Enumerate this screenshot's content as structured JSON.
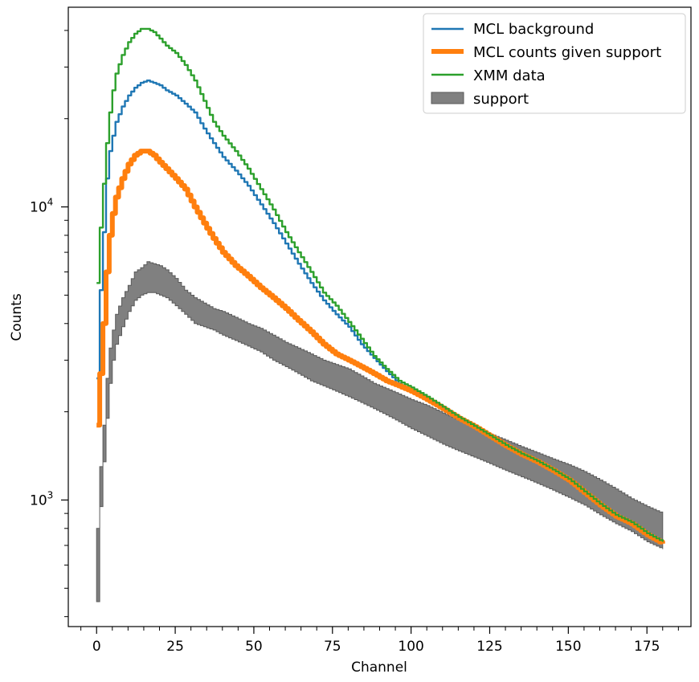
{
  "chart_data": {
    "type": "line",
    "title": "",
    "xlabel": "Channel",
    "ylabel": "Counts",
    "xlim": [
      -9,
      189
    ],
    "ylim": [
      370,
      48000
    ],
    "yscale": "log",
    "grid": false,
    "legend_position": "top-right",
    "x_ticks": [
      0,
      25,
      50,
      75,
      100,
      125,
      150,
      175
    ],
    "x_tick_labels": [
      "0",
      "25",
      "50",
      "75",
      "100",
      "125",
      "150",
      "175"
    ],
    "y_ticks": [
      1000,
      10000
    ],
    "y_tick_labels": [
      {
        "base": "10",
        "exp": "3"
      },
      {
        "base": "10",
        "exp": "4"
      }
    ],
    "series": [
      {
        "name": "MCL background",
        "color": "#1f77b4",
        "style": "step",
        "x": [
          0,
          1,
          2,
          3,
          4,
          5,
          6,
          8,
          10,
          12,
          14,
          16,
          18,
          20,
          22,
          25,
          28,
          31,
          34,
          37,
          40,
          44,
          48,
          52,
          56,
          60,
          64,
          68,
          72,
          76,
          80,
          84,
          88,
          92,
          96,
          100
        ],
        "y": [
          2600,
          5200,
          8200,
          12500,
          15500,
          17500,
          19500,
          22000,
          24000,
          25500,
          26500,
          27000,
          26500,
          26000,
          25000,
          24000,
          22500,
          21000,
          18500,
          16500,
          14800,
          13300,
          11800,
          10200,
          8800,
          7500,
          6400,
          5500,
          4800,
          4300,
          3900,
          3400,
          3050,
          2750,
          2500,
          2350
        ]
      },
      {
        "name": "MCL counts given support",
        "color": "#ff7f0e",
        "style": "step",
        "x": [
          0,
          1,
          2,
          3,
          4,
          5,
          6,
          8,
          10,
          12,
          14,
          16,
          18,
          20,
          22,
          25,
          28,
          31,
          34,
          37,
          40,
          44,
          48,
          52,
          56,
          60,
          64,
          68,
          72,
          76,
          80,
          84,
          88,
          92,
          96,
          100,
          105,
          110,
          115,
          120,
          125,
          130,
          135,
          140,
          145,
          150,
          155,
          160,
          165,
          170,
          175,
          180
        ],
        "y": [
          1800,
          2700,
          4000,
          6000,
          8000,
          9500,
          10800,
          12500,
          14000,
          15000,
          15500,
          15500,
          15000,
          14200,
          13500,
          12500,
          11500,
          10000,
          8800,
          7800,
          7000,
          6300,
          5800,
          5300,
          4900,
          4500,
          4100,
          3750,
          3400,
          3150,
          3000,
          2850,
          2700,
          2550,
          2450,
          2350,
          2200,
          2050,
          1900,
          1780,
          1650,
          1530,
          1430,
          1350,
          1260,
          1170,
          1060,
          960,
          880,
          830,
          760,
          710
        ]
      },
      {
        "name": "XMM data",
        "color": "#2ca02c",
        "style": "step",
        "x": [
          0,
          1,
          2,
          3,
          4,
          5,
          6,
          8,
          10,
          12,
          14,
          16,
          18,
          20,
          22,
          25,
          28,
          31,
          34,
          37,
          40,
          44,
          48,
          52,
          56,
          60,
          64,
          68,
          72,
          76,
          80,
          84,
          88,
          92,
          96,
          100,
          105,
          110,
          115,
          120,
          125,
          130,
          135,
          140,
          145,
          150,
          155,
          160,
          165,
          170,
          175,
          180
        ],
        "y": [
          5500,
          8500,
          12000,
          16500,
          21000,
          25000,
          28500,
          33000,
          36500,
          39000,
          40500,
          40500,
          39500,
          37500,
          35500,
          33500,
          30500,
          27000,
          23000,
          19500,
          17500,
          15500,
          13500,
          11500,
          9800,
          8200,
          7000,
          6000,
          5100,
          4600,
          4050,
          3550,
          3100,
          2800,
          2550,
          2420,
          2250,
          2080,
          1920,
          1790,
          1660,
          1540,
          1440,
          1360,
          1270,
          1180,
          1070,
          970,
          890,
          840,
          770,
          720
        ]
      },
      {
        "name": "support",
        "color": "#808080",
        "style": "band",
        "x": [
          0,
          0.5,
          1,
          2,
          3,
          4,
          5,
          6,
          8,
          10,
          12,
          14,
          16,
          18,
          20,
          22,
          25,
          28,
          31,
          34,
          37,
          40,
          44,
          48,
          52,
          56,
          60,
          64,
          68,
          72,
          76,
          80,
          84,
          88,
          92,
          96,
          100,
          105,
          110,
          115,
          120,
          125,
          130,
          135,
          140,
          145,
          150,
          155,
          160,
          165,
          170,
          175,
          180
        ],
        "lower": [
          450,
          700,
          950,
          1350,
          1900,
          2500,
          3000,
          3400,
          3900,
          4400,
          4800,
          5000,
          5100,
          5100,
          5000,
          4900,
          4600,
          4300,
          4000,
          3900,
          3800,
          3650,
          3500,
          3350,
          3200,
          3000,
          2850,
          2700,
          2550,
          2450,
          2350,
          2250,
          2150,
          2050,
          1950,
          1850,
          1750,
          1650,
          1550,
          1470,
          1400,
          1330,
          1260,
          1200,
          1140,
          1080,
          1020,
          960,
          890,
          830,
          780,
          720,
          680
        ],
        "upper": [
          800,
          1000,
          1300,
          1800,
          2600,
          3300,
          3800,
          4300,
          4900,
          5400,
          6000,
          6200,
          6500,
          6400,
          6300,
          6100,
          5700,
          5200,
          4900,
          4700,
          4500,
          4400,
          4200,
          4000,
          3850,
          3650,
          3450,
          3300,
          3150,
          3000,
          2900,
          2800,
          2650,
          2500,
          2400,
          2300,
          2200,
          2100,
          1980,
          1870,
          1770,
          1680,
          1600,
          1520,
          1450,
          1380,
          1320,
          1250,
          1170,
          1090,
          1010,
          950,
          900
        ]
      }
    ]
  }
}
